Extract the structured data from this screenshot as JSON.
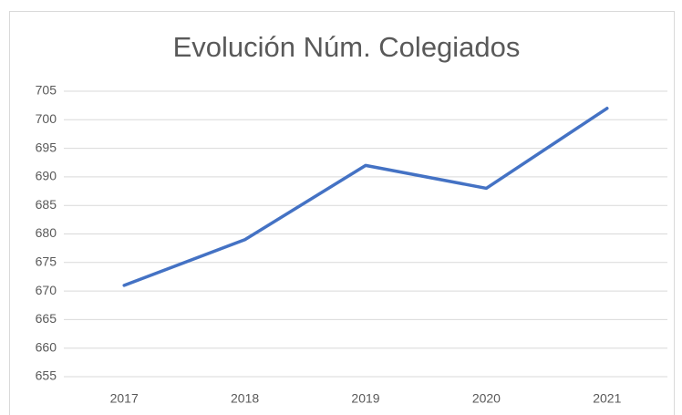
{
  "chart_data": {
    "type": "line",
    "title": "Evolución Núm. Colegiados",
    "categories": [
      "2017",
      "2018",
      "2019",
      "2020",
      "2021"
    ],
    "series": [
      {
        "name": "Colegiados",
        "color": "#4472c4",
        "values": [
          671,
          679,
          692,
          688,
          702
        ]
      }
    ],
    "ylim": [
      655,
      705
    ],
    "yticks": [
      655,
      660,
      665,
      670,
      675,
      680,
      685,
      690,
      695,
      700,
      705
    ],
    "grid": true
  }
}
